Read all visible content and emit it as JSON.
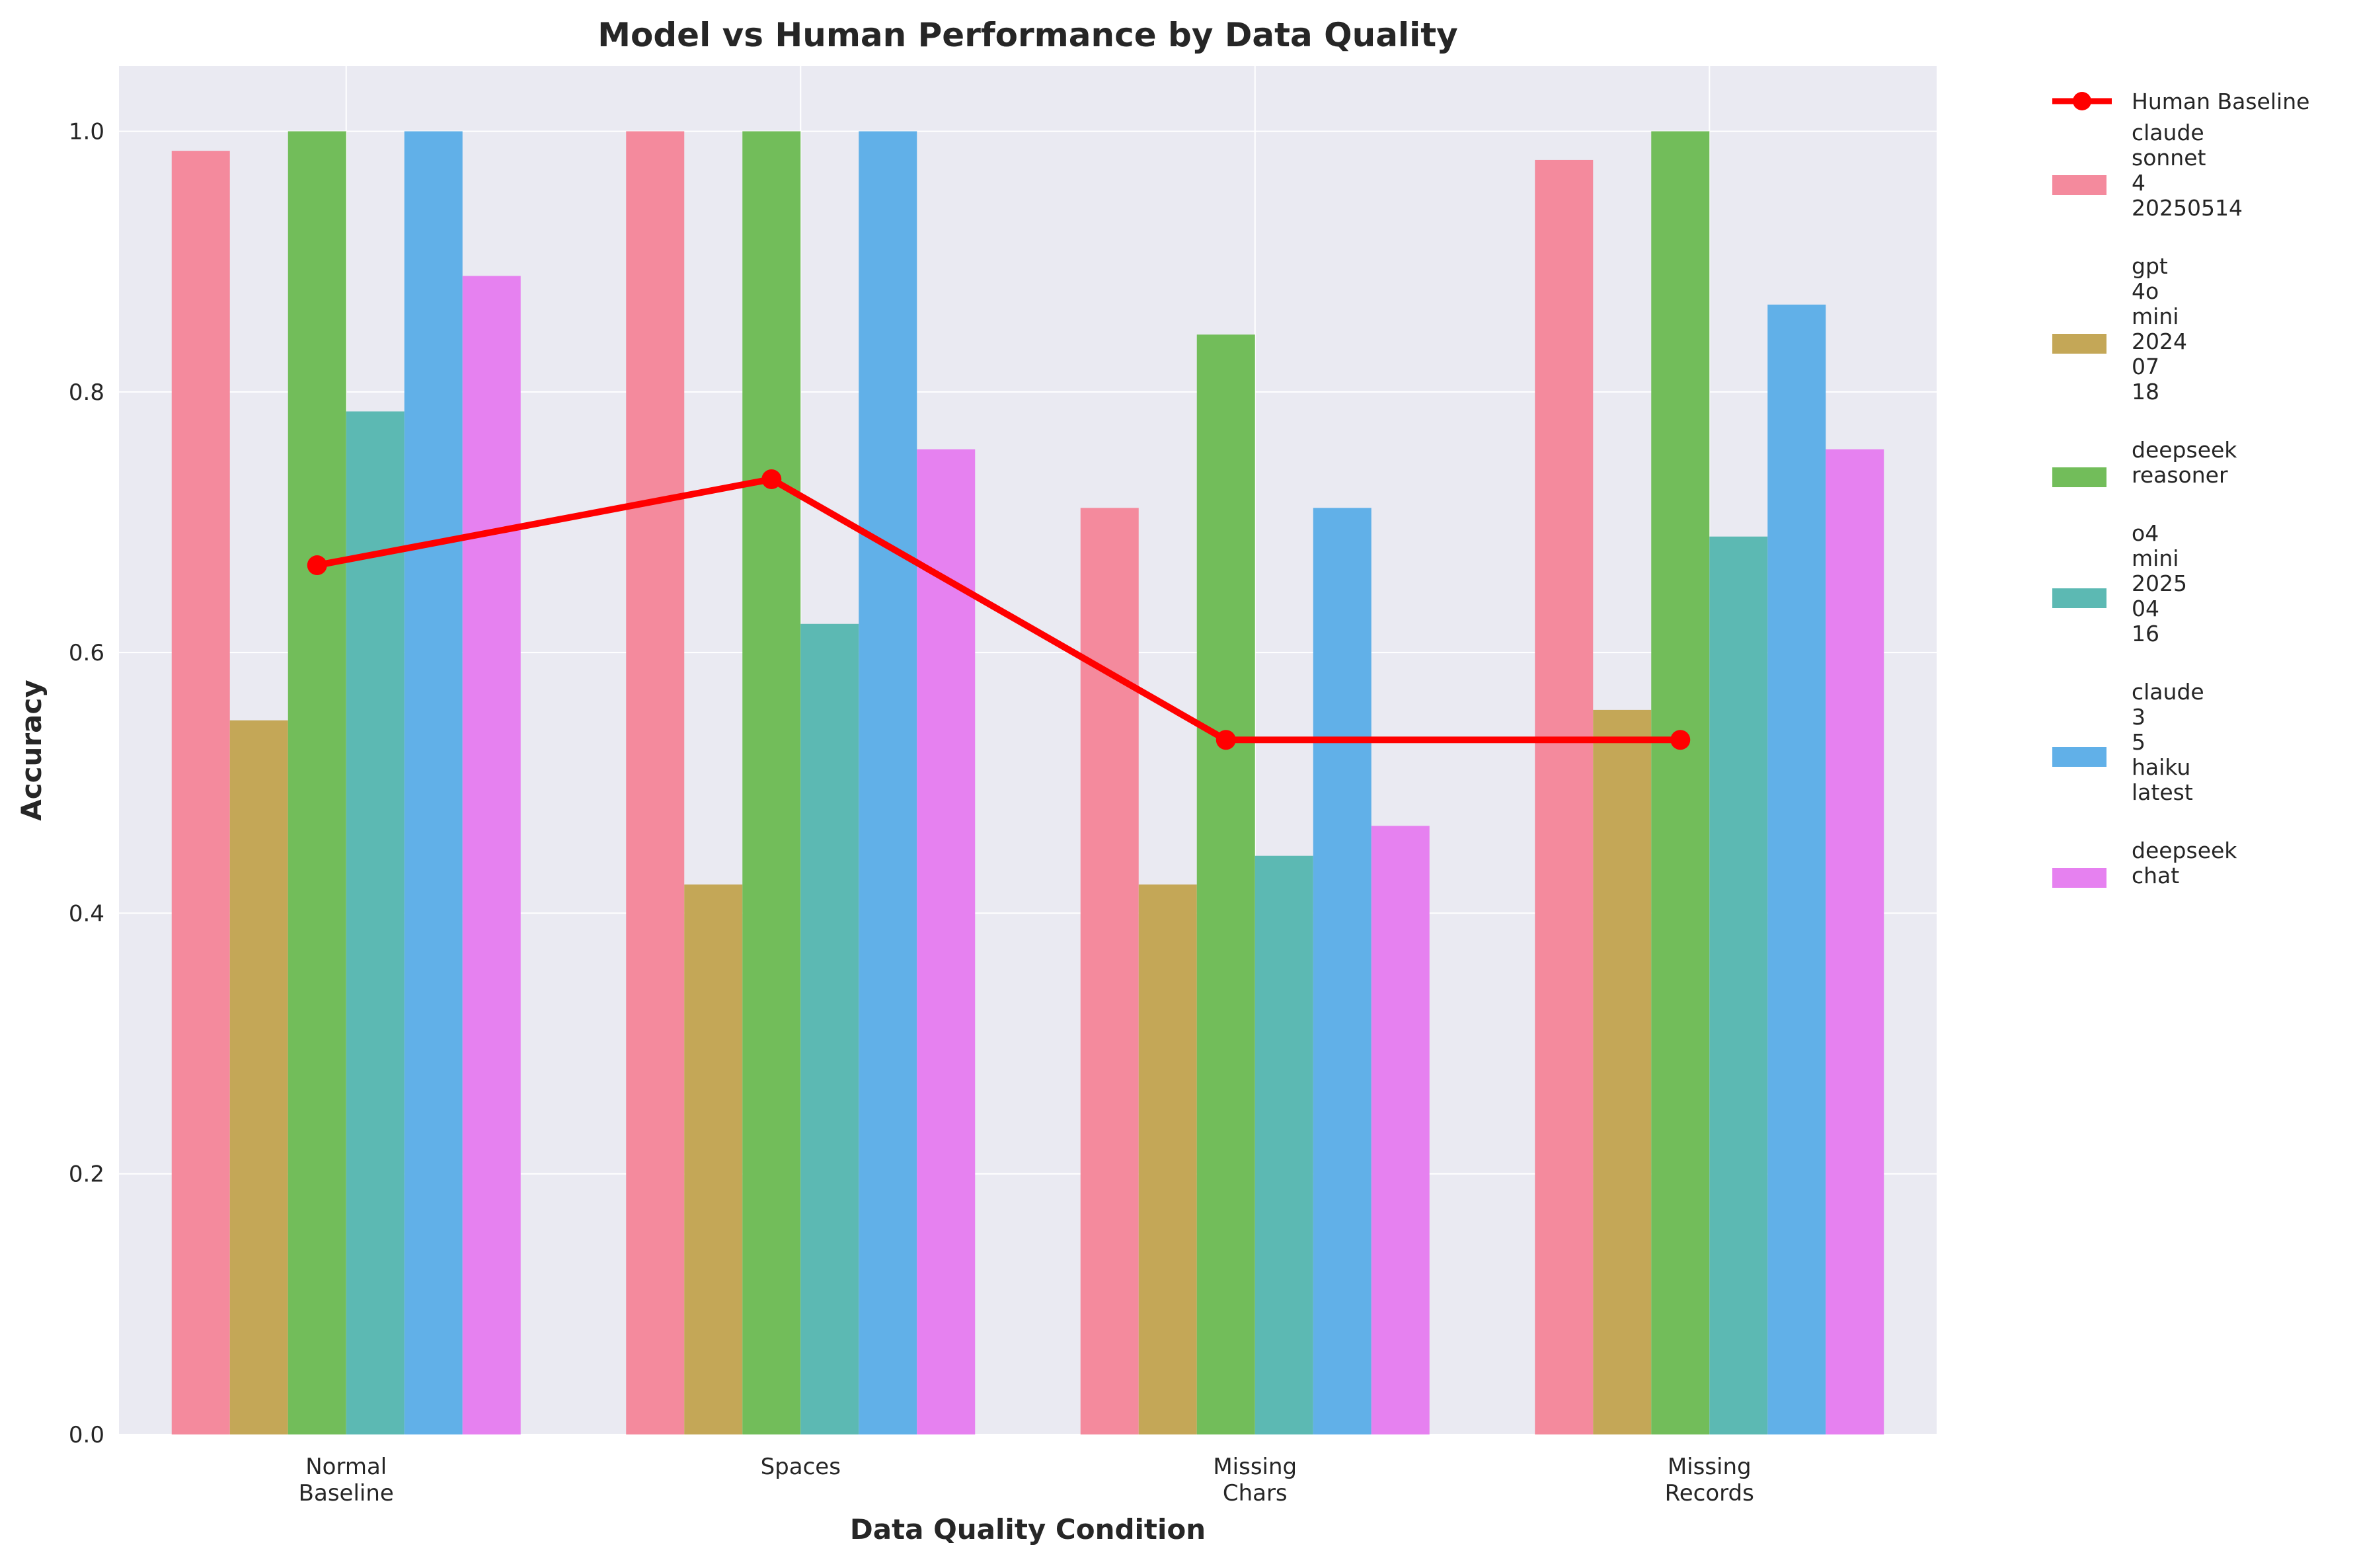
{
  "chart_data": {
    "type": "bar",
    "title": "Model vs Human Performance by Data Quality",
    "xlabel": "Data Quality Condition",
    "ylabel": "Accuracy",
    "ylim": [
      0,
      1.05
    ],
    "yticks": [
      "0.0",
      "0.2",
      "0.4",
      "0.6",
      "0.8",
      "1.0"
    ],
    "categories": [
      [
        "Normal",
        "Baseline"
      ],
      [
        "Spaces"
      ],
      [
        "Missing",
        "Chars"
      ],
      [
        "Missing",
        "Records"
      ]
    ],
    "series": [
      {
        "name": [
          "claude",
          "sonnet",
          "4",
          "20250514"
        ],
        "color": "#f48a9d",
        "values": [
          0.985,
          1.0,
          0.711,
          0.978
        ]
      },
      {
        "name": [
          "gpt",
          "4o",
          "mini",
          "2024",
          "07",
          "18"
        ],
        "color": "#c4a757",
        "values": [
          0.548,
          0.422,
          0.422,
          0.556
        ]
      },
      {
        "name": [
          "deepseek",
          "reasoner"
        ],
        "color": "#72bd5a",
        "values": [
          1.0,
          1.0,
          0.844,
          1.0
        ]
      },
      {
        "name": [
          "o4",
          "mini",
          "2025",
          "04",
          "16"
        ],
        "color": "#5cb9b3",
        "values": [
          0.785,
          0.622,
          0.444,
          0.689
        ]
      },
      {
        "name": [
          "claude",
          "3",
          "5",
          "haiku",
          "latest"
        ],
        "color": "#61b0e8",
        "values": [
          1.0,
          1.0,
          0.711,
          0.867
        ]
      },
      {
        "name": [
          "deepseek",
          "chat"
        ],
        "color": "#e681f0",
        "values": [
          0.889,
          0.756,
          0.467,
          0.756
        ]
      }
    ],
    "line_series": {
      "name": "Human Baseline",
      "color": "#ff0000",
      "values": [
        0.667,
        0.733,
        0.533,
        0.533
      ]
    },
    "grid": true,
    "legend_position": "outside-right"
  }
}
